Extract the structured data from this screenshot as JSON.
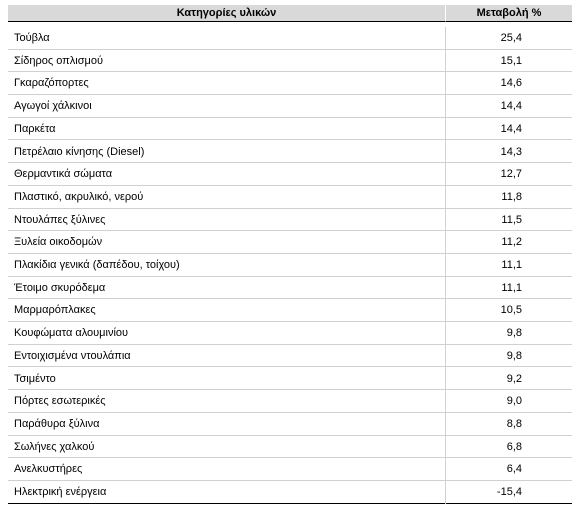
{
  "table": {
    "header": [
      "Κατηγορίες υλικών",
      "Μεταβολή %"
    ],
    "rows": [
      [
        "Τούβλα",
        "25,4"
      ],
      [
        "Σίδηρος οπλισμού",
        "15,1"
      ],
      [
        "Γκαραζόπορτες",
        "14,6"
      ],
      [
        "Αγωγοί χάλκινοι",
        "14,4"
      ],
      [
        "Παρκέτα",
        "14,4"
      ],
      [
        "Πετρέλαιο κίνησης (Diesel)",
        "14,3"
      ],
      [
        "Θερμαντικά σώματα",
        "12,7"
      ],
      [
        "Πλαστικό, ακρυλικό, νερού",
        "11,8"
      ],
      [
        "Ντουλάπες ξύλινες",
        "11,5"
      ],
      [
        "Ξυλεία οικοδομών",
        "11,2"
      ],
      [
        "Πλακίδια γενικά (δαπέδου, τοίχου)",
        "11,1"
      ],
      [
        "Έτοιμο σκυρόδεμα",
        "11,1"
      ],
      [
        "Μαρμαρόπλακες",
        "10,5"
      ],
      [
        "Κουφώματα αλουμινίου",
        "9,8"
      ],
      [
        "Εντοιχισμένα ντουλάπια",
        "9,8"
      ],
      [
        "Τσιμέντο",
        "9,2"
      ],
      [
        "Πόρτες εσωτερικές",
        "9,0"
      ],
      [
        "Παράθυρα ξύλινα",
        "8,8"
      ],
      [
        "Σωλήνες χαλκού",
        "6,8"
      ],
      [
        "Ανελκυστήρες",
        "6,4"
      ],
      [
        "Ηλεκτρική ενέργεια",
        "-15,4"
      ]
    ]
  }
}
